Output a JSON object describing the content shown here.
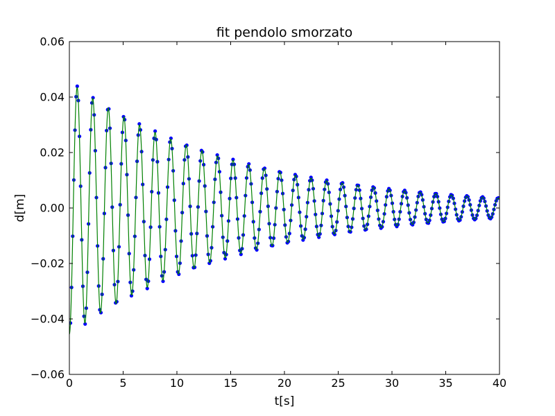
{
  "chart_data": {
    "type": "scatter",
    "title": "fit pendolo smorzato",
    "xlabel": "t[s]",
    "ylabel": "d[m]",
    "xlim": [
      0,
      40
    ],
    "ylim": [
      -0.06,
      0.06
    ],
    "x_ticks": [
      0,
      5,
      10,
      15,
      20,
      25,
      30,
      35,
      40
    ],
    "x_tick_labels": [
      "0",
      "5",
      "10",
      "15",
      "20",
      "25",
      "30",
      "35",
      "40"
    ],
    "y_ticks": [
      -0.06,
      -0.04,
      -0.02,
      0.0,
      0.02,
      0.04,
      0.06
    ],
    "y_tick_labels": [
      "−0.06",
      "−0.04",
      "−0.02",
      "0.00",
      "0.02",
      "0.04",
      "0.06"
    ],
    "grid": false,
    "legend": "none",
    "series": [
      {
        "kind": "scatter",
        "color": "#0000ff",
        "x_range": [
          0.1,
          39.9
        ],
        "n_points": 380,
        "model": {
          "amplitude": 0.046,
          "decay_rate": 0.0635,
          "period": 1.45,
          "phase": 3.14159
        }
      },
      {
        "kind": "line",
        "color": "#008000",
        "x_range": [
          0,
          40
        ],
        "model": {
          "amplitude": 0.0455,
          "decay_rate": 0.064,
          "period": 1.45,
          "phase": 3.14159
        }
      }
    ]
  }
}
